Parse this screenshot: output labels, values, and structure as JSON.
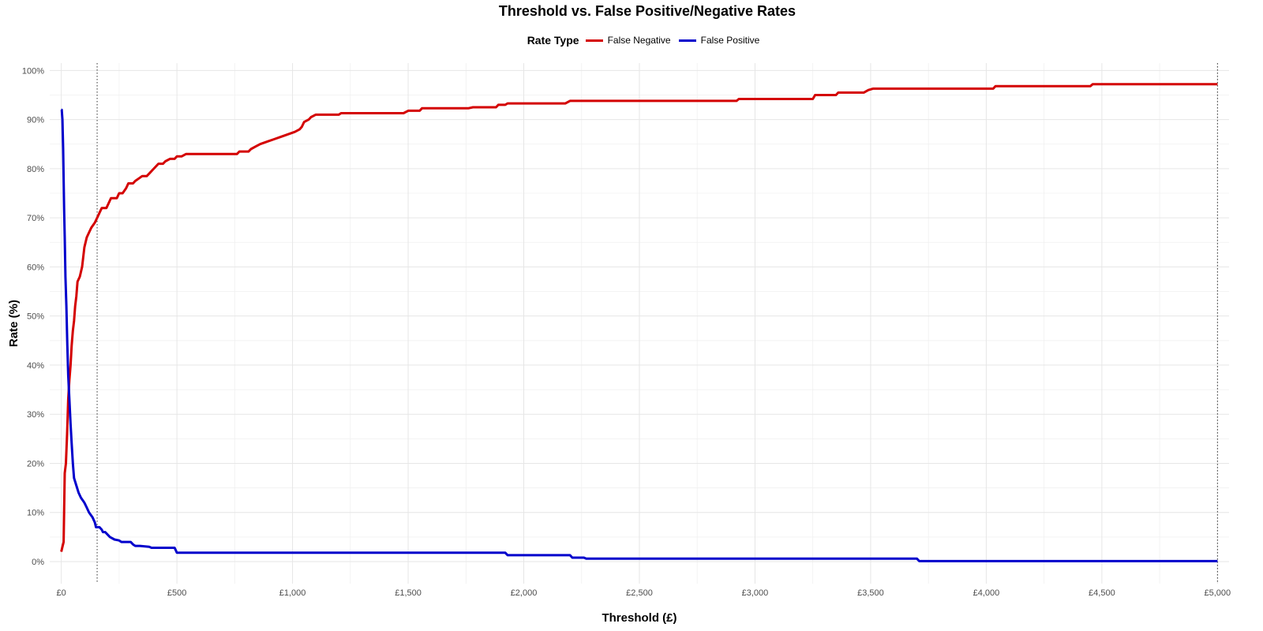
{
  "chart_data": {
    "type": "line",
    "title": "Threshold vs. False Positive/Negative Rates",
    "xlabel": "Threshold (£)",
    "ylabel": "Rate (%)",
    "xlim": [
      -50,
      5050
    ],
    "ylim": [
      -4.5,
      101.5
    ],
    "x_ticks": [
      0,
      500,
      1000,
      1500,
      2000,
      2500,
      3000,
      3500,
      4000,
      4500,
      5000
    ],
    "x_tick_labels": [
      "£0",
      "£500",
      "£1,000",
      "£1,500",
      "£2,000",
      "£2,500",
      "£3,000",
      "£3,500",
      "£4,000",
      "£4,500",
      "£5,000"
    ],
    "y_ticks": [
      0,
      10,
      20,
      30,
      40,
      50,
      60,
      70,
      80,
      90,
      100
    ],
    "y_tick_labels": [
      "0%",
      "10%",
      "20%",
      "30%",
      "40%",
      "50%",
      "60%",
      "70%",
      "80%",
      "90%",
      "100%"
    ],
    "grid": true,
    "legend": {
      "title": "Rate Type",
      "position": "top"
    },
    "reference_lines_x": [
      155,
      5000
    ],
    "series": [
      {
        "name": "False Negative",
        "color": "#d40000",
        "points": [
          [
            0,
            2
          ],
          [
            5,
            3
          ],
          [
            10,
            4
          ],
          [
            12,
            10
          ],
          [
            15,
            18
          ],
          [
            20,
            20
          ],
          [
            25,
            26
          ],
          [
            30,
            33
          ],
          [
            35,
            37
          ],
          [
            40,
            40
          ],
          [
            45,
            44
          ],
          [
            50,
            47
          ],
          [
            55,
            49
          ],
          [
            60,
            52
          ],
          [
            65,
            54
          ],
          [
            70,
            57
          ],
          [
            80,
            58
          ],
          [
            90,
            60
          ],
          [
            100,
            64
          ],
          [
            110,
            66
          ],
          [
            120,
            67
          ],
          [
            130,
            68
          ],
          [
            145,
            69
          ],
          [
            155,
            70
          ],
          [
            165,
            71
          ],
          [
            175,
            72
          ],
          [
            195,
            72
          ],
          [
            205,
            73
          ],
          [
            215,
            74
          ],
          [
            240,
            74
          ],
          [
            250,
            75
          ],
          [
            265,
            75
          ],
          [
            280,
            76
          ],
          [
            290,
            77
          ],
          [
            310,
            77
          ],
          [
            320,
            77.5
          ],
          [
            335,
            78
          ],
          [
            350,
            78.5
          ],
          [
            370,
            78.5
          ],
          [
            380,
            79
          ],
          [
            400,
            80
          ],
          [
            420,
            81
          ],
          [
            440,
            81
          ],
          [
            450,
            81.5
          ],
          [
            470,
            82
          ],
          [
            490,
            82
          ],
          [
            500,
            82.5
          ],
          [
            520,
            82.5
          ],
          [
            540,
            83
          ],
          [
            760,
            83
          ],
          [
            770,
            83.5
          ],
          [
            810,
            83.5
          ],
          [
            820,
            84
          ],
          [
            840,
            84.5
          ],
          [
            860,
            85
          ],
          [
            890,
            85.5
          ],
          [
            920,
            86
          ],
          [
            950,
            86.5
          ],
          [
            980,
            87
          ],
          [
            1010,
            87.5
          ],
          [
            1030,
            88
          ],
          [
            1040,
            88.5
          ],
          [
            1050,
            89.5
          ],
          [
            1070,
            90
          ],
          [
            1080,
            90.5
          ],
          [
            1100,
            91
          ],
          [
            1200,
            91
          ],
          [
            1210,
            91.3
          ],
          [
            1480,
            91.3
          ],
          [
            1500,
            91.8
          ],
          [
            1550,
            91.8
          ],
          [
            1560,
            92.3
          ],
          [
            1760,
            92.3
          ],
          [
            1780,
            92.5
          ],
          [
            1880,
            92.5
          ],
          [
            1890,
            93
          ],
          [
            1920,
            93
          ],
          [
            1930,
            93.3
          ],
          [
            2180,
            93.3
          ],
          [
            2200,
            93.8
          ],
          [
            2920,
            93.8
          ],
          [
            2930,
            94.2
          ],
          [
            3250,
            94.2
          ],
          [
            3260,
            95
          ],
          [
            3350,
            95
          ],
          [
            3360,
            95.5
          ],
          [
            3470,
            95.5
          ],
          [
            3490,
            96
          ],
          [
            3510,
            96.3
          ],
          [
            4030,
            96.3
          ],
          [
            4040,
            96.8
          ],
          [
            4450,
            96.8
          ],
          [
            4460,
            97.2
          ],
          [
            5000,
            97.2
          ]
        ]
      },
      {
        "name": "False Positive",
        "color": "#0000cc",
        "points": [
          [
            0,
            92
          ],
          [
            2,
            92
          ],
          [
            5,
            90
          ],
          [
            8,
            84
          ],
          [
            12,
            72
          ],
          [
            15,
            66
          ],
          [
            18,
            58
          ],
          [
            22,
            52
          ],
          [
            26,
            44
          ],
          [
            30,
            38
          ],
          [
            35,
            33
          ],
          [
            40,
            28
          ],
          [
            45,
            24
          ],
          [
            50,
            20
          ],
          [
            55,
            17
          ],
          [
            65,
            15.5
          ],
          [
            75,
            14
          ],
          [
            85,
            13
          ],
          [
            100,
            12
          ],
          [
            110,
            11
          ],
          [
            120,
            10
          ],
          [
            135,
            9
          ],
          [
            145,
            8
          ],
          [
            150,
            7
          ],
          [
            165,
            7
          ],
          [
            175,
            6.5
          ],
          [
            180,
            6
          ],
          [
            190,
            6
          ],
          [
            200,
            5.5
          ],
          [
            210,
            5
          ],
          [
            230,
            4.5
          ],
          [
            250,
            4.3
          ],
          [
            260,
            4
          ],
          [
            300,
            4
          ],
          [
            310,
            3.5
          ],
          [
            320,
            3.2
          ],
          [
            340,
            3.2
          ],
          [
            380,
            3
          ],
          [
            390,
            2.8
          ],
          [
            490,
            2.8
          ],
          [
            500,
            1.8
          ],
          [
            1920,
            1.8
          ],
          [
            1930,
            1.3
          ],
          [
            2200,
            1.3
          ],
          [
            2210,
            0.8
          ],
          [
            2260,
            0.8
          ],
          [
            2270,
            0.6
          ],
          [
            3700,
            0.6
          ],
          [
            3710,
            0.1
          ],
          [
            5000,
            0.1
          ]
        ]
      }
    ]
  }
}
